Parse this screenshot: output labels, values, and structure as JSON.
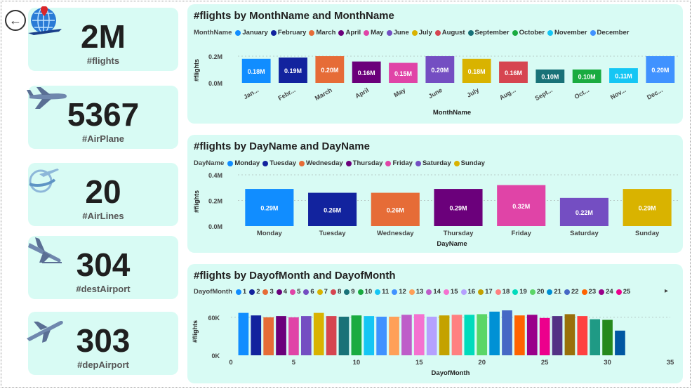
{
  "nav": {
    "back_icon": "back-arrow-icon"
  },
  "kpis": [
    {
      "value": "2M",
      "label": "#flights",
      "icon": "globe-airplane-icon"
    },
    {
      "value": "5367",
      "label": "#AirPlane",
      "icon": "airplane-icon"
    },
    {
      "value": "20",
      "label": "#AirLines",
      "icon": "airline-logo-icon"
    },
    {
      "value": "304",
      "label": "#destAirport",
      "icon": "landing-plane-icon"
    },
    {
      "value": "303",
      "label": "#depAirport",
      "icon": "takeoff-plane-icon"
    }
  ],
  "month_chart": {
    "title": "#flights by MonthName and MonthName",
    "legend_title": "MonthName",
    "ylabel": "#flights",
    "xlabel": "MonthName",
    "yticks": [
      "0.2M",
      "0.0M"
    ],
    "legend": [
      "January",
      "February",
      "March",
      "April",
      "May",
      "June",
      "July",
      "August",
      "September",
      "October",
      "November",
      "December"
    ],
    "colors": [
      "#118DFF",
      "#12239E",
      "#E66C37",
      "#6B007B",
      "#E044A7",
      "#744EC2",
      "#D9B300",
      "#D64550",
      "#197278",
      "#1AAB40",
      "#15C6F4",
      "#4092FF"
    ]
  },
  "day_chart": {
    "title": "#flights by DayName and DayName",
    "legend_title": "DayName",
    "ylabel": "#flights",
    "xlabel": "DayName",
    "yticks": [
      "0.4M",
      "0.2M",
      "0.0M"
    ],
    "legend": [
      "Monday",
      "Tuesday",
      "Wednesday",
      "Thursday",
      "Friday",
      "Saturday",
      "Sunday"
    ],
    "colors": [
      "#118DFF",
      "#12239E",
      "#E66C37",
      "#6B007B",
      "#E044A7",
      "#744EC2",
      "#D9B300"
    ]
  },
  "dom_chart": {
    "title": "#flights by DayofMonth and DayofMonth",
    "legend_title": "DayofMonth",
    "ylabel": "#flights",
    "xlabel": "DayofMonth",
    "yticks": [
      "60K",
      "0K"
    ],
    "xticks": [
      "0",
      "5",
      "10",
      "15",
      "20",
      "25",
      "30",
      "35"
    ],
    "legend": [
      "1",
      "2",
      "3",
      "4",
      "5",
      "6",
      "7",
      "8",
      "9",
      "10",
      "11",
      "12",
      "13",
      "14",
      "15",
      "16",
      "17",
      "18",
      "19",
      "20",
      "21",
      "22",
      "23",
      "24",
      "25"
    ],
    "legend_more_icon": "scroll-right-icon"
  },
  "chart_data": [
    {
      "type": "bar",
      "title": "#flights by MonthName and MonthName",
      "xlabel": "MonthName",
      "ylabel": "#flights",
      "ylim": [
        0,
        0.22
      ],
      "categories": [
        "January",
        "February",
        "March",
        "April",
        "May",
        "June",
        "July",
        "August",
        "September",
        "October",
        "November",
        "December"
      ],
      "tick_labels": [
        "Jan...",
        "Febr...",
        "March",
        "April",
        "May",
        "June",
        "July",
        "Aug...",
        "Sept...",
        "Oct...",
        "Nov...",
        "Dec..."
      ],
      "values": [
        0.18,
        0.19,
        0.2,
        0.16,
        0.15,
        0.2,
        0.18,
        0.16,
        0.1,
        0.1,
        0.11,
        0.2
      ],
      "data_labels": [
        "0.18M",
        "0.19M",
        "0.20M",
        "0.16M",
        "0.15M",
        "0.20M",
        "0.18M",
        "0.16M",
        "0.10M",
        "0.10M",
        "0.11M",
        "0.20M"
      ],
      "grid": true,
      "legend": "top-left"
    },
    {
      "type": "bar",
      "title": "#flights by DayName and DayName",
      "xlabel": "DayName",
      "ylabel": "#flights",
      "ylim": [
        0,
        0.4
      ],
      "categories": [
        "Monday",
        "Tuesday",
        "Wednesday",
        "Thursday",
        "Friday",
        "Saturday",
        "Sunday"
      ],
      "values": [
        0.29,
        0.26,
        0.26,
        0.29,
        0.32,
        0.22,
        0.29
      ],
      "data_labels": [
        "0.29M",
        "0.26M",
        "0.26M",
        "0.29M",
        "0.32M",
        "0.22M",
        "0.29M"
      ],
      "grid": true,
      "legend": "top-left"
    },
    {
      "type": "bar",
      "title": "#flights by DayofMonth and DayofMonth",
      "xlabel": "DayofMonth",
      "ylabel": "#flights",
      "xlim": [
        0,
        35
      ],
      "ylim": [
        0,
        75000
      ],
      "x": [
        1,
        2,
        3,
        4,
        5,
        6,
        7,
        8,
        9,
        10,
        11,
        12,
        13,
        14,
        15,
        16,
        17,
        18,
        19,
        20,
        21,
        22,
        23,
        24,
        25,
        26,
        27,
        28,
        29,
        30,
        31
      ],
      "values": [
        67000,
        63000,
        60000,
        62000,
        60000,
        62000,
        67000,
        62000,
        61000,
        63000,
        62000,
        61000,
        61000,
        64000,
        65000,
        61000,
        63000,
        64000,
        64000,
        65000,
        69000,
        71000,
        63000,
        64000,
        59000,
        62000,
        65000,
        62000,
        57000,
        56000,
        39000
      ],
      "colors": [
        "#118DFF",
        "#12239E",
        "#E66C37",
        "#6B007B",
        "#E044A7",
        "#744EC2",
        "#D9B300",
        "#D64550",
        "#197278",
        "#1AAB40",
        "#15C6F4",
        "#4092FF",
        "#FFA058",
        "#BE5DC9",
        "#F472D0",
        "#B5A1FF",
        "#C4A200",
        "#FF8080",
        "#00DBBC",
        "#5BD667",
        "#0091D5",
        "#4668C5",
        "#FF6300",
        "#99008A",
        "#EC008C",
        "#533285",
        "#99700A",
        "#FF4141",
        "#1F9A85",
        "#25891C",
        "#0057A2"
      ],
      "grid": true,
      "legend": "top-left"
    }
  ]
}
